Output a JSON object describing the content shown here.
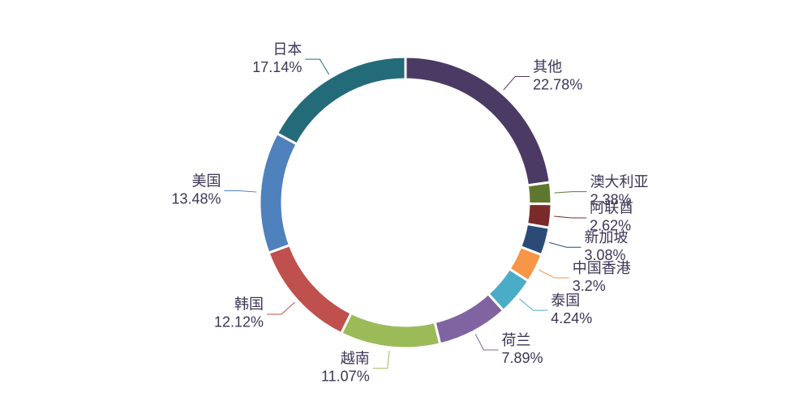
{
  "chart_data": {
    "type": "donut",
    "categories": [
      "其他",
      "澳大利亚",
      "阿联酋",
      "新加坡",
      "中国香港",
      "泰国",
      "荷兰",
      "越南",
      "韩国",
      "美国",
      "日本"
    ],
    "values": [
      22.78,
      2.38,
      2.62,
      3.08,
      3.2,
      4.24,
      7.89,
      11.07,
      12.12,
      13.48,
      17.14
    ],
    "value_labels": [
      "22.78%",
      "2.38%",
      "2.62%",
      "3.08%",
      "3.2%",
      "4.24%",
      "7.89%",
      "11.07%",
      "12.12%",
      "13.48%",
      "17.14%"
    ],
    "colors": [
      "#4b3a63",
      "#5e772e",
      "#7b2a2a",
      "#2b4b76",
      "#f79646",
      "#4bacc6",
      "#8064a2",
      "#9bbb59",
      "#c0504d",
      "#4f81bd",
      "#236b78"
    ]
  }
}
